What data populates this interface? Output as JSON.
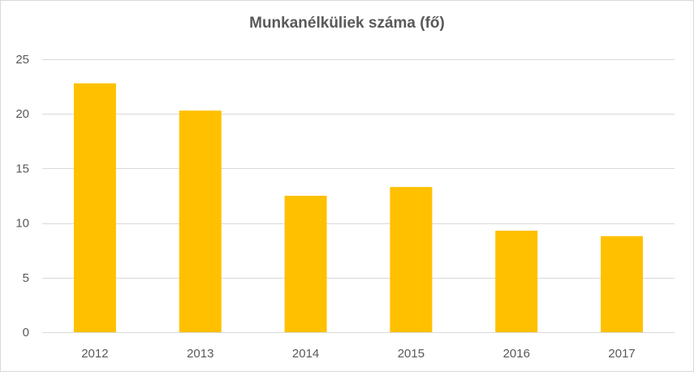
{
  "chart_data": {
    "type": "bar",
    "title": "Munkanélküliek száma (fő)",
    "categories": [
      "2012",
      "2013",
      "2014",
      "2015",
      "2016",
      "2017"
    ],
    "values": [
      22.8,
      20.3,
      12.5,
      13.3,
      9.3,
      8.8
    ],
    "ylim": [
      0,
      25
    ],
    "yticks": [
      0,
      5,
      10,
      15,
      20,
      25
    ],
    "grid": true,
    "xlabel": "",
    "ylabel": "",
    "colors": {
      "bar": "#FFC000",
      "grid": "#d9d9d9",
      "text": "#595959"
    }
  }
}
